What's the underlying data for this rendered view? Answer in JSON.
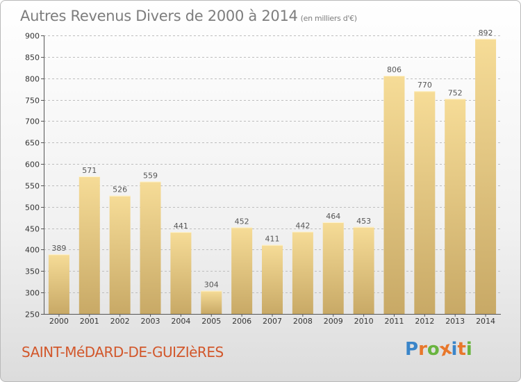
{
  "header": {
    "title": "Autres Revenus Divers de 2000 à 2014",
    "unit": "(en milliers d'€)"
  },
  "footer": {
    "commune": "SAINT-MéDARD-DE-GUIZIèRES",
    "logo_text": "Proxiti"
  },
  "colors": {
    "bar_light": "#f6dc97",
    "bar_dark": "#c8a966",
    "grid": "#bdbdbd",
    "title": "#7d7d7d",
    "commune": "#d2572b",
    "logo_letters": [
      "#3a85c9",
      "#e8772b",
      "#69b43f",
      "#e8772b",
      "#3a85c9",
      "#e8772b",
      "#69b43f"
    ]
  },
  "chart_data": {
    "type": "bar",
    "title": "Autres Revenus Divers de 2000 à 2014",
    "subtitle": "(en milliers d'€)",
    "categories": [
      "2000",
      "2001",
      "2002",
      "2003",
      "2004",
      "2005",
      "2006",
      "2007",
      "2008",
      "2009",
      "2010",
      "2011",
      "2012",
      "2013",
      "2014"
    ],
    "values": [
      389,
      571,
      526,
      559,
      441,
      304,
      452,
      411,
      442,
      464,
      453,
      806,
      770,
      752,
      892
    ],
    "ylim": [
      250,
      900
    ],
    "yticks": [
      250,
      300,
      350,
      400,
      450,
      500,
      550,
      600,
      650,
      700,
      750,
      800,
      850,
      900
    ],
    "grid": true,
    "xlabel": "",
    "ylabel": ""
  }
}
